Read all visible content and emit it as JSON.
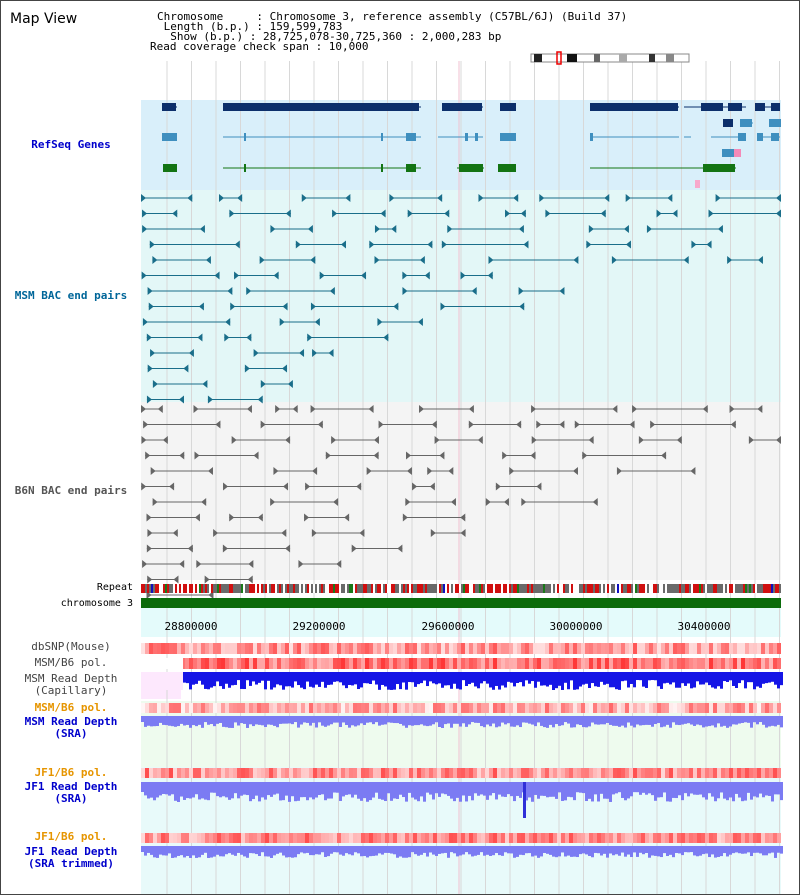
{
  "window": {
    "title": "Map View"
  },
  "info": {
    "chromosome": "Chromosome     : Chromosome 3, reference assembly (C57BL/6J) (Build 37)",
    "length": " Length (b.p.) : 159,599,783",
    "show": "  Show (b.p.) : 28,725,078-30,725,360 : 2,000,283 bp",
    "coverage": "Read coverage check span : 10,000"
  },
  "tracks": {
    "refseq": "RefSeq Genes",
    "msm_bac": "MSM BAC end pairs",
    "b6n_bac": "B6N BAC end pairs",
    "repeat": "Repeat",
    "chromosome": "chromosome 3",
    "dbsnp": "dbSNP(Mouse)",
    "msm_b6_pol": "MSM/B6 pol.",
    "msm_rd_cap_1": "MSM Read Depth",
    "msm_rd_cap_2": "(Capillary)",
    "msm_b6_pol_sra": "MSM/B6 pol.",
    "msm_rd_sra_1": "MSM Read Depth",
    "msm_rd_sra_2": "(SRA)",
    "jf1_pol_1": "JF1/B6 pol.",
    "jf1_rd_1": "JF1 Read Depth",
    "jf1_rd_2": "(SRA)",
    "jf1_pol_2": "JF1/B6 pol.",
    "jf1_rd_trim_1": "JF1 Read Depth",
    "jf1_rd_trim_2": "(SRA trimmed)"
  },
  "axis": {
    "ticks": [
      "28800000",
      "29200000",
      "29600000",
      "30000000",
      "30400000"
    ]
  },
  "colors": {
    "refseq_bg": "#d9effa",
    "msm_bg": "#e3f7f7",
    "b6n_bg": "#f4f4f4",
    "label_blue": "#0000cc",
    "label_teal": "#006699",
    "label_orange": "#e69500",
    "gene_dark": "#0c2f6b",
    "gene_light": "#3f8fbf",
    "gene_green": "#137413",
    "depth_blue": "#1515e6",
    "depth_light": "#7b7bf3"
  }
}
